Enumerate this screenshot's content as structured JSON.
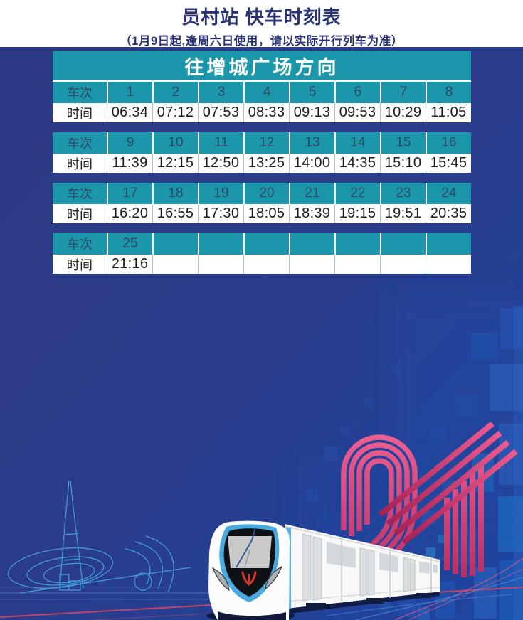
{
  "header": {
    "title": "员村站 快车时刻表",
    "subtitle": "（1月9日起,逢周六日使用，请以实际开行列车为准）"
  },
  "timetable": {
    "direction": "往增城广场方向",
    "train_label": "车次",
    "time_label": "时间",
    "sections": [
      {
        "trains": [
          "1",
          "2",
          "3",
          "4",
          "5",
          "6",
          "7",
          "8"
        ],
        "times": [
          "06:34",
          "07:12",
          "07:53",
          "08:33",
          "09:13",
          "09:53",
          "10:29",
          "11:05"
        ]
      },
      {
        "trains": [
          "9",
          "10",
          "11",
          "12",
          "13",
          "14",
          "15",
          "16"
        ],
        "times": [
          "11:39",
          "12:15",
          "12:50",
          "13:25",
          "14:00",
          "14:35",
          "15:10",
          "15:45"
        ]
      },
      {
        "trains": [
          "17",
          "18",
          "19",
          "20",
          "21",
          "22",
          "23",
          "24"
        ],
        "times": [
          "16:20",
          "16:55",
          "17:30",
          "18:05",
          "18:39",
          "19:15",
          "19:51",
          "20:35"
        ]
      },
      {
        "trains": [
          "25",
          "",
          "",
          "",
          "",
          "",
          "",
          ""
        ],
        "times": [
          "21:16",
          "",
          "",
          "",
          "",
          "",
          "",
          ""
        ]
      }
    ]
  },
  "illustration": {
    "line_number_motif": "21"
  },
  "colors": {
    "background_navy": "#2c3a84",
    "bright_blue": "#1f49a6",
    "table_teal": "#1b96ab",
    "title_navy": "#2b3274",
    "accent_pink": "#d84380",
    "sketch_blue": "#49abe2",
    "train_trim_blue": "#4aa9de",
    "logo_red": "#d4372c",
    "time_text": "#1d1d1d",
    "train_number_text": "#2c4a66"
  }
}
